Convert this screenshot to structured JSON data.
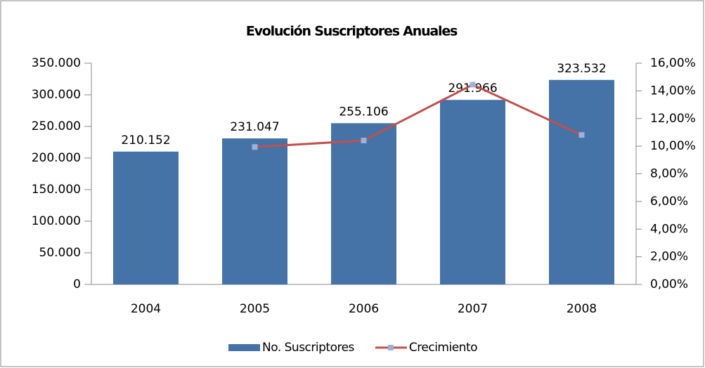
{
  "chart_data": {
    "type": "bar",
    "title": "Evolución Suscriptores Anuales",
    "categories": [
      "2004",
      "2005",
      "2006",
      "2007",
      "2008"
    ],
    "series": [
      {
        "name": "No. Suscriptores",
        "color": "#4572a7",
        "values": [
          210152,
          231047,
          255106,
          291966,
          323532
        ],
        "value_labels": [
          "210.152",
          "231.047",
          "255.106",
          "291.966",
          "323.532"
        ]
      },
      {
        "name": "Crecimiento",
        "type": "line",
        "axis": "y2",
        "color": "#c0504d",
        "marker_color": "#9bb2d9",
        "values": [
          null,
          9.94,
          10.41,
          14.45,
          10.81
        ]
      }
    ],
    "ylim": [
      0,
      350000
    ],
    "yticks": [
      0,
      {
        "value": 50000,
        "label": "50.000"
      },
      {
        "value": 100000,
        "label": "100.000"
      },
      {
        "value": 150000,
        "label": "150.000"
      },
      {
        "value": 200000,
        "label": "200.000"
      },
      {
        "value": 250000,
        "label": "250.000"
      },
      {
        "value": 300000,
        "label": "300.000"
      },
      {
        "value": 350000,
        "label": "350.000"
      }
    ],
    "y2lim": [
      0,
      16
    ],
    "y2ticks": [
      {
        "value": 0,
        "label": "0,00%"
      },
      {
        "value": 2,
        "label": "2,00%"
      },
      {
        "value": 4,
        "label": "4,00%"
      },
      {
        "value": 6,
        "label": "6,00%"
      },
      {
        "value": 8,
        "label": "8,00%"
      },
      {
        "value": 10,
        "label": "10,00%"
      },
      {
        "value": 12,
        "label": "12,00%"
      },
      {
        "value": 14,
        "label": "14,00%"
      },
      {
        "value": 16,
        "label": "16,00%"
      }
    ],
    "legend": "bottom"
  }
}
